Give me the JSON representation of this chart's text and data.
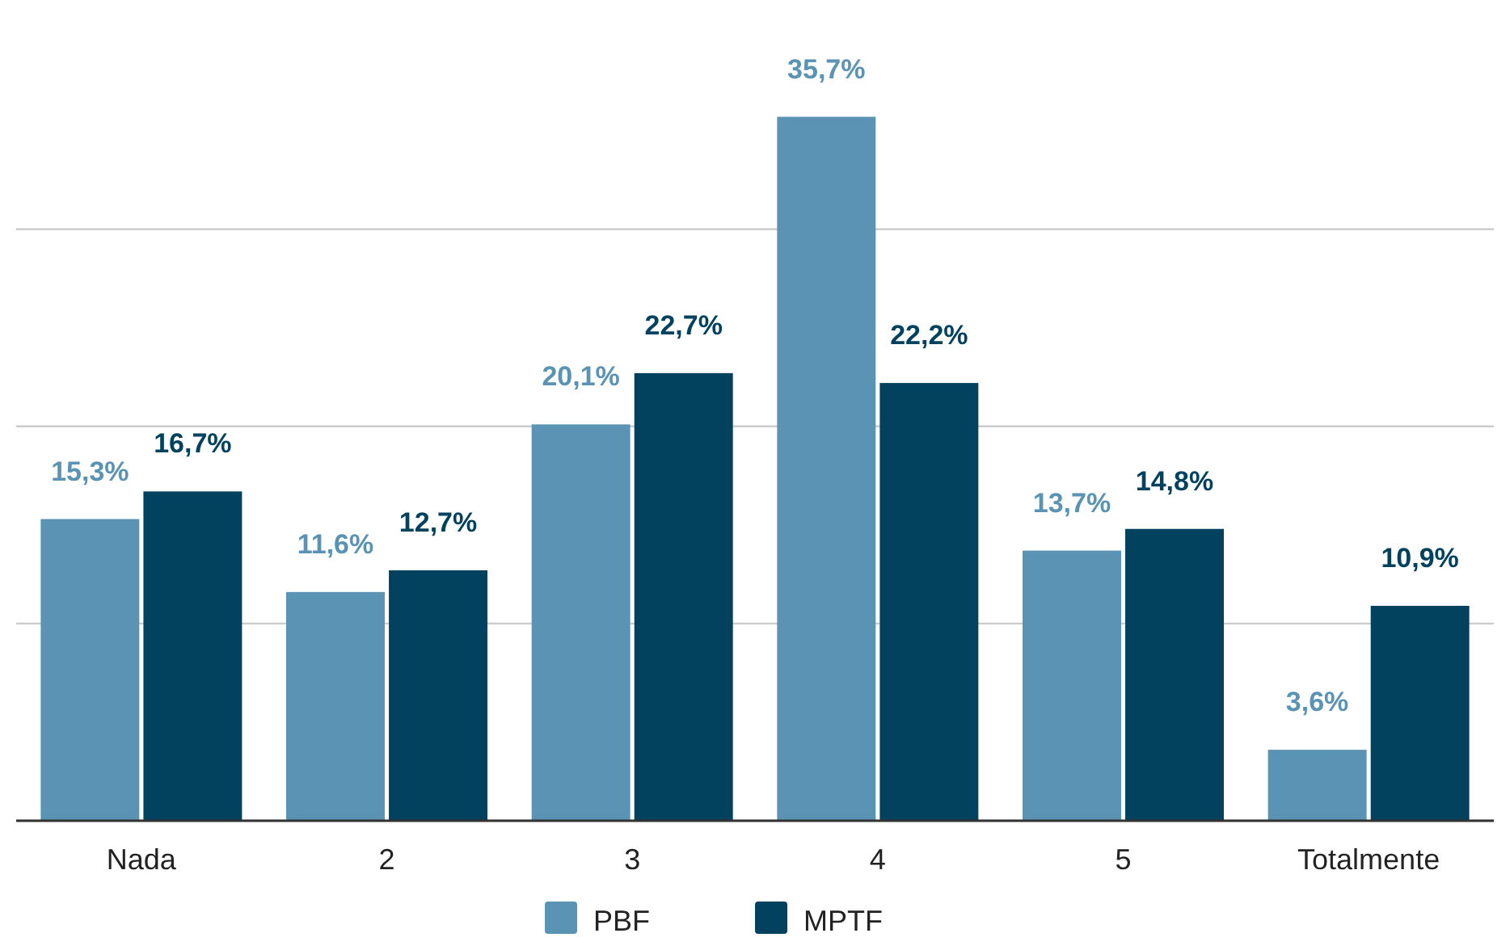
{
  "chart_data": {
    "type": "bar",
    "categories": [
      "Nada",
      "2",
      "3",
      "4",
      "5",
      "Totalmente"
    ],
    "series": [
      {
        "name": "PBF",
        "color": "#5a93b3",
        "values": [
          15.3,
          11.6,
          20.1,
          35.7,
          13.7,
          3.6
        ],
        "value_labels": [
          "15,3%",
          "11,6%",
          "20,1%",
          "35,7%",
          "13,7%",
          "3,6%"
        ]
      },
      {
        "name": "MPTF",
        "color": "#03425f",
        "values": [
          16.7,
          12.7,
          22.7,
          22.2,
          14.8,
          10.9
        ],
        "value_labels": [
          "16,7%",
          "12,7%",
          "22,7%",
          "22,2%",
          "14,8%",
          "10,9%"
        ]
      }
    ],
    "yticks": [
      {
        "value": 0,
        "label": null
      },
      {
        "value": 10,
        "label": null
      },
      {
        "value": 20,
        "label": null
      },
      {
        "value": 30,
        "label": null
      }
    ],
    "grid": "y",
    "legend": "bottom",
    "tick_labels": "x"
  }
}
